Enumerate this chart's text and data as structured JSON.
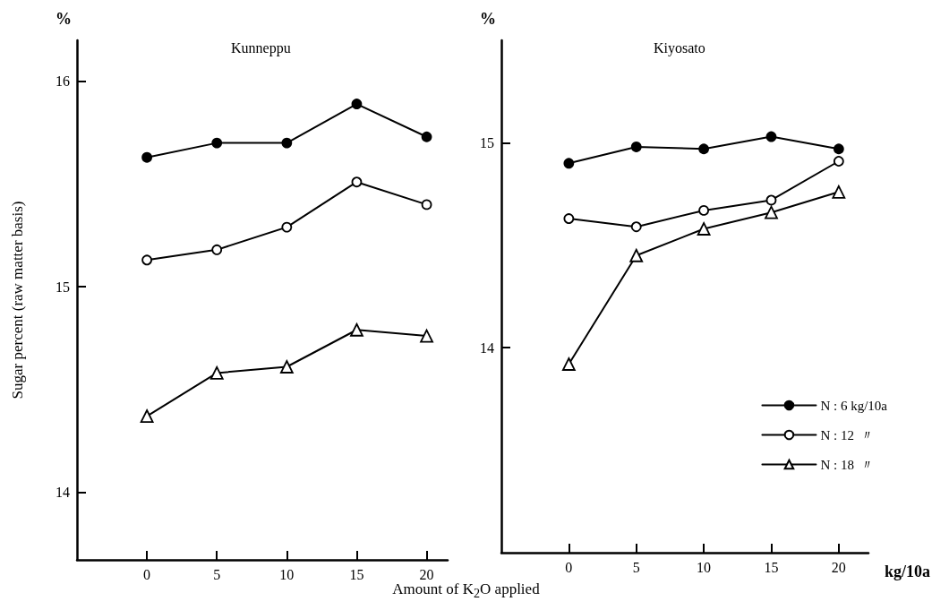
{
  "chart_data": [
    {
      "type": "line",
      "title": "Kunneppu",
      "ylabel": "Sugar percent (raw matter basis)",
      "xlabel": "Amount of K$_{2}$O applied",
      "annotations": [
        "%"
      ],
      "x": [
        0,
        5,
        10,
        15,
        20
      ],
      "xlim": [
        -5,
        21.5
      ],
      "xticks": [
        0,
        5,
        10,
        15,
        20
      ],
      "ylim": [
        13.67,
        16.2
      ],
      "yticks": [
        14,
        15,
        16
      ],
      "grid": false,
      "legend": false,
      "line_style": "solid",
      "series": [
        {
          "color": "#000000",
          "marker": "circle",
          "values": [
            15.63,
            15.7,
            15.7,
            15.89,
            15.73
          ]
        },
        {
          "color": "#000000",
          "marker": "circle",
          "values": [
            15.13,
            15.18,
            15.29,
            15.51,
            15.4
          ]
        },
        {
          "color": "#000000",
          "marker": "triangle",
          "values": [
            14.37,
            14.58,
            14.61,
            14.79,
            14.76
          ]
        }
      ]
    },
    {
      "type": "line",
      "title": "Kiyosato",
      "annotations": [
        "%",
        "kg/10a"
      ],
      "x": [
        0,
        5,
        10,
        15,
        20
      ],
      "xlim": [
        -5,
        22.2
      ],
      "xticks": [
        0,
        5,
        10,
        15,
        20
      ],
      "ylim": [
        13.0,
        15.5
      ],
      "yticks": [
        14,
        15
      ],
      "grid": false,
      "legend": "bottom right",
      "line_style": "solid",
      "series": [
        {
          "name": "N : 6 kg/10a",
          "color": "#000000",
          "marker": "circle",
          "values": [
            14.9,
            14.98,
            14.97,
            15.03,
            14.97
          ]
        },
        {
          "name": "N : 12  〃",
          "color": "#000000",
          "marker": "circle",
          "values": [
            14.63,
            14.59,
            14.67,
            14.72,
            14.91
          ]
        },
        {
          "name": "N : 18  〃",
          "color": "#000000",
          "marker": "triangle",
          "values": [
            13.92,
            14.45,
            14.58,
            14.66,
            14.76
          ]
        }
      ]
    }
  ]
}
